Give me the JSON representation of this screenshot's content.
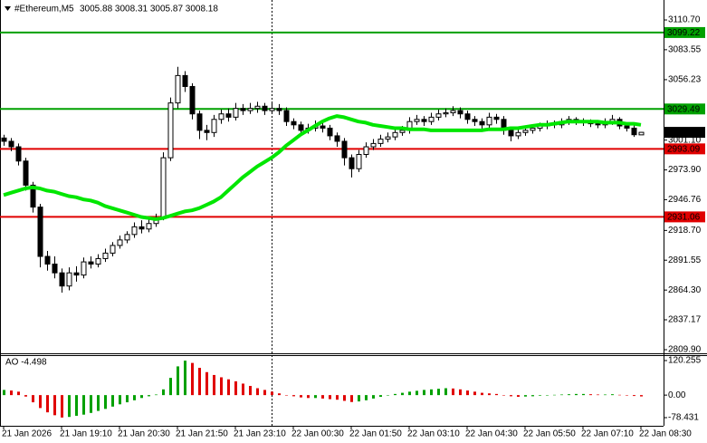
{
  "chart_data": [
    {
      "type": "candlestick",
      "title": "#Ethereum,M5",
      "subtitle": "3005.88 3008.31 3005.87 3008.18",
      "categories": [
        "21 Jan 2026",
        null,
        null,
        null,
        null,
        null,
        null,
        null,
        "21 Jan 19:10",
        null,
        null,
        null,
        null,
        null,
        null,
        null,
        "21 Jan 20:30",
        null,
        null,
        null,
        null,
        null,
        null,
        null,
        "21 Jan 21:50",
        null,
        null,
        null,
        null,
        null,
        null,
        null,
        "21 Jan 23:10",
        null,
        null,
        null,
        null,
        null,
        null,
        null,
        "22 Jan 00:30",
        null,
        null,
        null,
        null,
        null,
        null,
        null,
        "22 Jan 01:50",
        null,
        null,
        null,
        null,
        null,
        null,
        null,
        "22 Jan 03:10",
        null,
        null,
        null,
        null,
        null,
        null,
        null,
        "22 Jan 04:30",
        null,
        null,
        null,
        null,
        null,
        null,
        null,
        "22 Jan 05:50",
        null,
        null,
        null,
        null,
        null,
        null,
        null,
        "22 Jan 07:10",
        null,
        null,
        null,
        null,
        null,
        null,
        null,
        "22 Jan 08:30"
      ],
      "open": [
        3003,
        3000,
        2995,
        2982,
        2960,
        2940,
        2895,
        2888,
        2880,
        2868,
        2880,
        2878,
        2890,
        2888,
        2893,
        2898,
        2905,
        2910,
        2915,
        2922,
        2920,
        2925,
        2930,
        2985,
        3035,
        3060,
        3050,
        3025,
        3010,
        3008,
        3020,
        3025,
        3022,
        3030,
        3028,
        3030,
        3032,
        3028,
        3030,
        3028,
        3018,
        3015,
        3010,
        3012,
        3014,
        3012,
        3005,
        3000,
        2985,
        2975,
        2988,
        2995,
        2998,
        3002,
        3004,
        3008,
        3010,
        3018,
        3020,
        3018,
        3022,
        3025,
        3026,
        3028,
        3025,
        3020,
        3018,
        3015,
        3022,
        3020,
        3010,
        3005,
        3008,
        3010,
        3012,
        3014,
        3016,
        3015,
        3018,
        3020,
        3018,
        3017,
        3016,
        3015,
        3018,
        3020,
        3014,
        3012,
        3005.88
      ],
      "high": [
        3006,
        3003,
        2998,
        2985,
        2963,
        2943,
        2900,
        2895,
        2884,
        2885,
        2886,
        2894,
        2895,
        2897,
        2902,
        2908,
        2914,
        2918,
        2926,
        2928,
        2930,
        2934,
        2990,
        3040,
        3068,
        3064,
        3053,
        3028,
        3015,
        3024,
        3029,
        3030,
        3035,
        3034,
        3035,
        3036,
        3035,
        3036,
        3034,
        3031,
        3021,
        3018,
        3016,
        3019,
        3018,
        3015,
        3008,
        3003,
        2988,
        2992,
        2999,
        3002,
        3006,
        3008,
        3012,
        3014,
        3022,
        3024,
        3023,
        3026,
        3029,
        3030,
        3032,
        3031,
        3028,
        3023,
        3021,
        3026,
        3025,
        3023,
        3013,
        3011,
        3013,
        3015,
        3017,
        3019,
        3019,
        3021,
        3023,
        3022,
        3021,
        3020,
        3019,
        3021,
        3024,
        3022,
        3017,
        3015,
        3008.31
      ],
      "low": [
        2996,
        2991,
        2978,
        2955,
        2935,
        2885,
        2882,
        2875,
        2862,
        2864,
        2872,
        2875,
        2884,
        2885,
        2890,
        2895,
        2902,
        2907,
        2912,
        2916,
        2917,
        2922,
        2928,
        2982,
        3030,
        3045,
        3020,
        3002,
        3001,
        3004,
        3016,
        3018,
        3019,
        3024,
        3025,
        3026,
        3024,
        3025,
        3024,
        3014,
        3011,
        3006,
        3007,
        3009,
        3008,
        3001,
        2995,
        2978,
        2967,
        2972,
        2985,
        2992,
        2995,
        2999,
        3001,
        3005,
        3007,
        3015,
        3014,
        3015,
        3019,
        3022,
        3023,
        3021,
        3016,
        3014,
        3011,
        3012,
        3016,
        3006,
        3000,
        3002,
        3005,
        3007,
        3009,
        3011,
        3012,
        3012,
        3015,
        3015,
        3014,
        3013,
        3012,
        3012,
        3015,
        3011,
        3009,
        3004,
        3005.87
      ],
      "close": [
        3000,
        2995,
        2982,
        2960,
        2940,
        2895,
        2888,
        2880,
        2868,
        2880,
        2878,
        2890,
        2888,
        2893,
        2898,
        2905,
        2910,
        2915,
        2922,
        2920,
        2925,
        2930,
        2985,
        3035,
        3060,
        3050,
        3025,
        3010,
        3008,
        3020,
        3025,
        3022,
        3030,
        3028,
        3030,
        3032,
        3028,
        3030,
        3028,
        3018,
        3015,
        3010,
        3012,
        3014,
        3012,
        3005,
        3000,
        2985,
        2975,
        2988,
        2995,
        2998,
        3002,
        3004,
        3008,
        3010,
        3018,
        3020,
        3018,
        3022,
        3025,
        3026,
        3028,
        3025,
        3020,
        3018,
        3015,
        3022,
        3020,
        3010,
        3005,
        3008,
        3010,
        3012,
        3014,
        3016,
        3015,
        3018,
        3020,
        3018,
        3017,
        3016,
        3015,
        3018,
        3020,
        3014,
        3012,
        3006,
        3008.18
      ],
      "up_color": "#ffffff",
      "down_color": "#000000",
      "wick_color": "#000000",
      "moving_average": {
        "color": "#00e600",
        "values": [
          2951,
          2953,
          2955,
          2957,
          2958,
          2957,
          2955,
          2954,
          2952,
          2950,
          2949,
          2947,
          2946,
          2944,
          2941,
          2939,
          2937,
          2935,
          2933,
          2931,
          2930,
          2929,
          2930,
          2932,
          2934,
          2936,
          2937,
          2939,
          2942,
          2945,
          2949,
          2955,
          2961,
          2967,
          2972,
          2977,
          2981,
          2985,
          2990,
          2996,
          3001,
          3006,
          3010,
          3014,
          3018,
          3021,
          3023,
          3022,
          3020,
          3018,
          3017,
          3015,
          3014,
          3013,
          3012,
          3012,
          3011,
          3011,
          3011,
          3010,
          3010,
          3010,
          3010,
          3010,
          3010,
          3010,
          3010,
          3011,
          3011,
          3011,
          3012,
          3012,
          3013,
          3014,
          3015,
          3015,
          3016,
          3017,
          3018,
          3018,
          3018,
          3018,
          3018,
          3017,
          3017,
          3017,
          3016,
          3016,
          3015
        ]
      },
      "levels": [
        {
          "value": 3099.22,
          "color": "#00a000"
        },
        {
          "value": 3029.49,
          "color": "#00a000"
        },
        {
          "value": 2993.09,
          "color": "#e00000"
        },
        {
          "value": 2931.06,
          "color": "#e00000"
        }
      ],
      "last_price": 3008.18,
      "last_price_color": "#000000",
      "ylim": [
        2806.6,
        3128.9
      ],
      "yticks": [
        {
          "value": 3110.7,
          "label": "3110.70"
        },
        3083.55,
        3056.23,
        {
          "value": 3001.1,
          "label": "3001.10"
        },
        {
          "value": 2973.9,
          "label": "2973.90"
        },
        2946.76,
        {
          "value": 2918.7,
          "label": "2918.70"
        },
        2891.55,
        {
          "value": 2864.3,
          "label": "2864.30"
        },
        2837.17,
        {
          "value": 2809.9,
          "label": "2809.90"
        }
      ],
      "grid": false
    },
    {
      "type": "bar",
      "title": "AO -4.498",
      "values": [
        18,
        16,
        12,
        -5,
        -25,
        -45,
        -60,
        -70,
        -78,
        -76,
        -72,
        -68,
        -62,
        -55,
        -48,
        -40,
        -32,
        -25,
        -18,
        -10,
        -4,
        2,
        20,
        60,
        100,
        120,
        112,
        95,
        80,
        70,
        62,
        55,
        48,
        40,
        32,
        24,
        18,
        12,
        6,
        0,
        -4,
        -8,
        -10,
        -10,
        -12,
        -14,
        -16,
        -20,
        -24,
        -22,
        -18,
        -12,
        -6,
        0,
        4,
        8,
        12,
        15,
        18,
        20,
        22,
        24,
        23,
        20,
        16,
        12,
        8,
        6,
        4,
        0,
        -4,
        -6,
        -5,
        -4,
        -2,
        0,
        1,
        2,
        3,
        4,
        4,
        3,
        2,
        2,
        3,
        1,
        -1,
        -3,
        -4.498
      ],
      "up_color": "#00a000",
      "down_color": "#e00000",
      "ylim": [
        -100.5,
        139.2
      ],
      "yticks": [
        120.255,
        {
          "value": 0,
          "label": "0.00"
        },
        -78.431
      ],
      "grid": false
    }
  ]
}
